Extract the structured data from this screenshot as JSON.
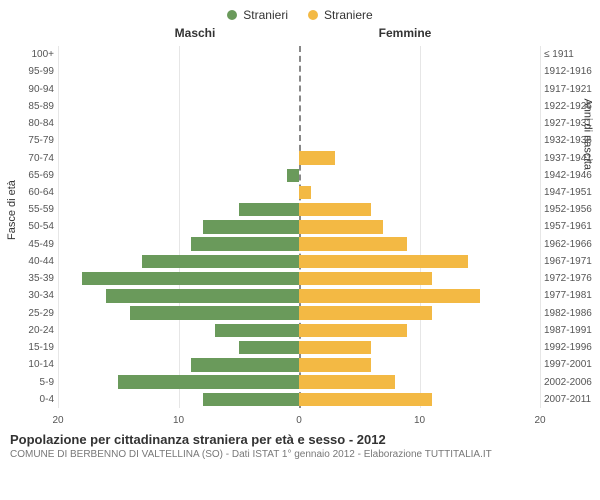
{
  "legend": {
    "male": {
      "label": "Stranieri",
      "color": "#6a9a5b"
    },
    "female": {
      "label": "Straniere",
      "color": "#f3b944"
    }
  },
  "headers": {
    "male": "Maschi",
    "female": "Femmine"
  },
  "axis_labels": {
    "left": "Fasce di età",
    "right": "Anni di nascita"
  },
  "chart": {
    "type": "population-pyramid",
    "xlim": 20,
    "xticks": [
      20,
      10,
      0,
      10,
      20
    ],
    "grid_color": "#e6e6e6",
    "center_color": "#888888",
    "background_color": "#ffffff",
    "groups": [
      {
        "age": "100+",
        "birth": "≤ 1911",
        "m": 0,
        "f": 0
      },
      {
        "age": "95-99",
        "birth": "1912-1916",
        "m": 0,
        "f": 0
      },
      {
        "age": "90-94",
        "birth": "1917-1921",
        "m": 0,
        "f": 0
      },
      {
        "age": "85-89",
        "birth": "1922-1926",
        "m": 0,
        "f": 0
      },
      {
        "age": "80-84",
        "birth": "1927-1931",
        "m": 0,
        "f": 0
      },
      {
        "age": "75-79",
        "birth": "1932-1936",
        "m": 0,
        "f": 0
      },
      {
        "age": "70-74",
        "birth": "1937-1941",
        "m": 0,
        "f": 3
      },
      {
        "age": "65-69",
        "birth": "1942-1946",
        "m": 1,
        "f": 0
      },
      {
        "age": "60-64",
        "birth": "1947-1951",
        "m": 0,
        "f": 1
      },
      {
        "age": "55-59",
        "birth": "1952-1956",
        "m": 5,
        "f": 6
      },
      {
        "age": "50-54",
        "birth": "1957-1961",
        "m": 8,
        "f": 7
      },
      {
        "age": "45-49",
        "birth": "1962-1966",
        "m": 9,
        "f": 9
      },
      {
        "age": "40-44",
        "birth": "1967-1971",
        "m": 13,
        "f": 14
      },
      {
        "age": "35-39",
        "birth": "1972-1976",
        "m": 18,
        "f": 11
      },
      {
        "age": "30-34",
        "birth": "1977-1981",
        "m": 16,
        "f": 15
      },
      {
        "age": "25-29",
        "birth": "1982-1986",
        "m": 14,
        "f": 11
      },
      {
        "age": "20-24",
        "birth": "1987-1991",
        "m": 7,
        "f": 9
      },
      {
        "age": "15-19",
        "birth": "1992-1996",
        "m": 5,
        "f": 6
      },
      {
        "age": "10-14",
        "birth": "1997-2001",
        "m": 9,
        "f": 6
      },
      {
        "age": "5-9",
        "birth": "2002-2006",
        "m": 15,
        "f": 8
      },
      {
        "age": "0-4",
        "birth": "2007-2011",
        "m": 8,
        "f": 11
      }
    ]
  },
  "footer": {
    "title": "Popolazione per cittadinanza straniera per età e sesso - 2012",
    "subtitle": "COMUNE DI BERBENNO DI VALTELLINA (SO) - Dati ISTAT 1° gennaio 2012 - Elaborazione TUTTITALIA.IT"
  }
}
